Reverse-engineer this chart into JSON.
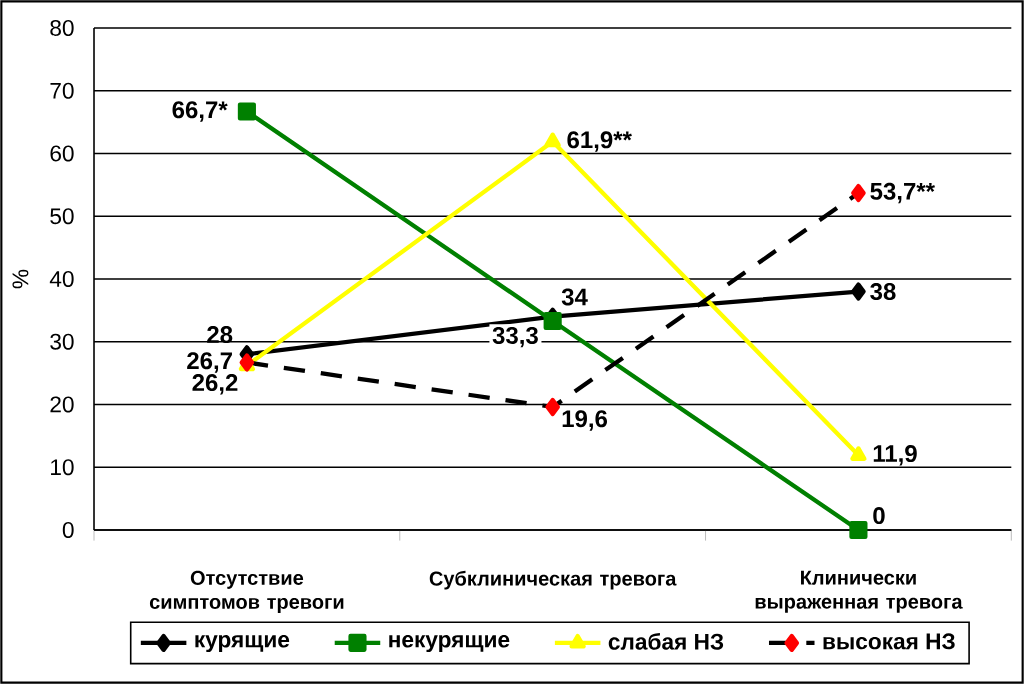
{
  "chart_data": {
    "type": "line",
    "ylabel": "%",
    "categories": [
      "Отсутствие симптомов тревоги",
      "Субклиническая тревога",
      "Клинически выраженная тревога"
    ],
    "ylim": [
      0,
      80
    ],
    "yticks": [
      0,
      10,
      20,
      30,
      40,
      50,
      60,
      70,
      80
    ],
    "grid": "y",
    "legend": "bottom",
    "series": [
      {
        "name": "курящие",
        "color": "#000000",
        "marker": "diamond",
        "line_style": "solid",
        "values": [
          28,
          34,
          38
        ],
        "value_labels": [
          "28",
          "34",
          "38"
        ]
      },
      {
        "name": "некурящие",
        "color": "#008000",
        "marker": "square",
        "line_style": "solid",
        "values": [
          66.7,
          33.3,
          0
        ],
        "value_labels": [
          "66,7*",
          "33,3",
          "0"
        ]
      },
      {
        "name": "слабая НЗ",
        "color": "#ffff00",
        "marker": "triangle",
        "line_style": "solid",
        "values": [
          26.2,
          61.9,
          11.9
        ],
        "value_labels": [
          "26,2",
          "61,9**",
          "11,9"
        ]
      },
      {
        "name": "высокая НЗ",
        "color": "#000000",
        "colors": [
          "#ff0000",
          "#ff0000",
          "#ff0000"
        ],
        "marker": "diamond",
        "line_style": "dashed",
        "values": [
          26.7,
          19.6,
          53.7
        ],
        "value_labels": [
          "26,7",
          "19,6",
          "53,7**"
        ]
      }
    ]
  }
}
